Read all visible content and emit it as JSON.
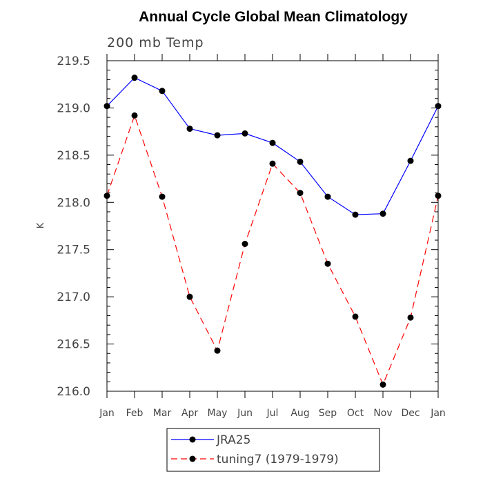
{
  "chart_data": {
    "type": "line",
    "title": "Annual Cycle Global Mean Climatology",
    "subtitle": "200 mb Temp",
    "xlabel": "",
    "ylabel": "K",
    "categories": [
      "Jan",
      "Feb",
      "Mar",
      "Apr",
      "May",
      "Jun",
      "Jul",
      "Aug",
      "Sep",
      "Oct",
      "Nov",
      "Dec",
      "Jan"
    ],
    "ylim": [
      216.0,
      219.5
    ],
    "yticks": [
      "216.0",
      "216.5",
      "217.0",
      "217.5",
      "218.0",
      "218.5",
      "219.0",
      "219.5"
    ],
    "grid": false,
    "legend_position": "bottom",
    "series": [
      {
        "name": "JRA25",
        "color": "#0000ff",
        "dash": "solid",
        "marker": "filled-circle",
        "values": [
          219.02,
          219.32,
          219.18,
          218.78,
          218.71,
          218.73,
          218.63,
          218.43,
          218.06,
          217.87,
          217.88,
          218.44,
          219.02
        ]
      },
      {
        "name": "tuning7 (1979-1979)",
        "color": "#ff0000",
        "dash": "dashed",
        "marker": "filled-circle",
        "values": [
          218.07,
          218.92,
          218.06,
          217.0,
          216.43,
          217.56,
          218.41,
          218.1,
          217.35,
          216.79,
          216.07,
          216.78,
          218.07
        ]
      }
    ]
  }
}
